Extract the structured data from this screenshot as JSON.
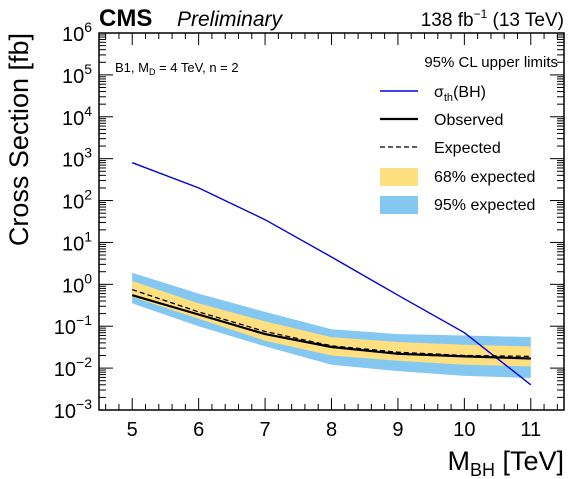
{
  "header": {
    "experiment": "CMS",
    "status": "Preliminary",
    "lumi_value": "138 fb",
    "lumi_exp": "−1",
    "energy": " (13 TeV)"
  },
  "model": {
    "prefix": "B1, M",
    "sub": "D",
    "suffix": " = 4 TeV, n = 2"
  },
  "legend": {
    "title": "95% CL upper limits",
    "theory_main": "σ",
    "theory_sub": "th",
    "theory_tail": "(BH)",
    "observed": "Observed",
    "expected": "Expected",
    "band68": "68% expected",
    "band95": "95% expected"
  },
  "colors": {
    "theory": "#0000dd",
    "observed": "#000000",
    "expected": "#000000",
    "band68": "#ffdf7f",
    "band95": "#84c8f2"
  },
  "chart_data": {
    "type": "line",
    "xlabel_main": "M",
    "xlabel_sub": "BH",
    "xlabel_tail": " [TeV]",
    "ylabel": "Cross Section [fb]",
    "xlim": [
      4.5,
      11.5
    ],
    "ylim": [
      0.001,
      1000000
    ],
    "yscale": "log",
    "xticks": [
      "5",
      "6",
      "7",
      "8",
      "9",
      "10",
      "11"
    ],
    "yticks": [
      {
        "base": "10",
        "exp": "−3"
      },
      {
        "base": "10",
        "exp": "−2"
      },
      {
        "base": "10",
        "exp": "−1"
      },
      {
        "base": "10",
        "exp": "0"
      },
      {
        "base": "10",
        "exp": "1"
      },
      {
        "base": "10",
        "exp": "2"
      },
      {
        "base": "10",
        "exp": "3"
      },
      {
        "base": "10",
        "exp": "4"
      },
      {
        "base": "10",
        "exp": "5"
      },
      {
        "base": "10",
        "exp": "6"
      }
    ],
    "x": [
      5,
      6,
      7,
      8,
      9,
      10,
      11
    ],
    "series": [
      {
        "name": "σth(BH)",
        "style": "solid-blue",
        "x": [
          5,
          6,
          7,
          8,
          9,
          10,
          11
        ],
        "values": [
          800,
          200,
          35,
          4.5,
          0.55,
          0.07,
          0.004
        ]
      },
      {
        "name": "Observed",
        "style": "solid-black",
        "values": [
          0.55,
          0.19,
          0.065,
          0.032,
          0.022,
          0.019,
          0.017
        ]
      },
      {
        "name": "Expected",
        "style": "dashed-black",
        "values": [
          0.75,
          0.22,
          0.075,
          0.034,
          0.024,
          0.02,
          0.019
        ]
      }
    ],
    "bands": [
      {
        "name": "95% expected",
        "low": [
          0.35,
          0.1,
          0.033,
          0.012,
          0.0085,
          0.0065,
          0.0058
        ],
        "high": [
          1.9,
          0.6,
          0.22,
          0.085,
          0.065,
          0.06,
          0.055
        ]
      },
      {
        "name": "68% expected",
        "low": [
          0.5,
          0.15,
          0.045,
          0.02,
          0.015,
          0.012,
          0.011
        ],
        "high": [
          1.2,
          0.35,
          0.13,
          0.055,
          0.042,
          0.036,
          0.033
        ]
      }
    ]
  }
}
